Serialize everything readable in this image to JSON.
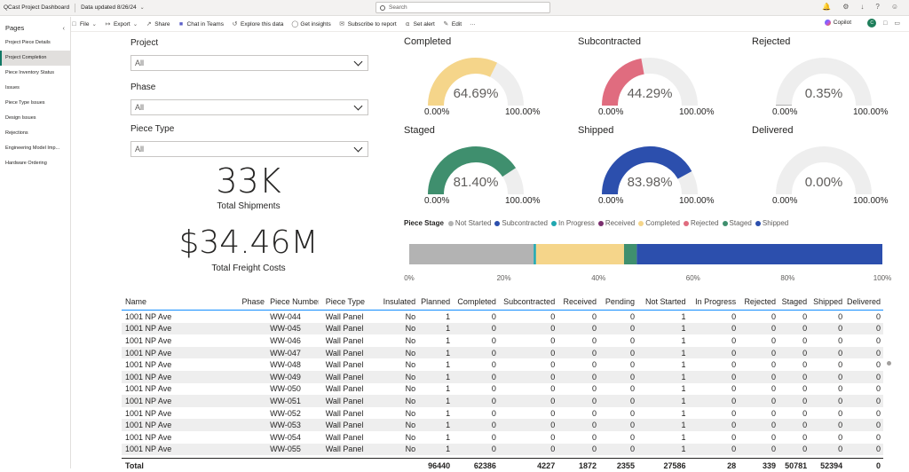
{
  "topbar": {
    "app_title": "QCast Project Dashboard",
    "updated": "Data updated 8/26/24",
    "search_placeholder": "Search"
  },
  "toolbar": {
    "items": [
      "File",
      "Export",
      "Share",
      "Chat in Teams",
      "Explore this data",
      "Get insights",
      "Subscribe to report",
      "Set alert",
      "Edit",
      "···"
    ],
    "copilot": "Copilot",
    "avatar_initials": "C"
  },
  "sidebar": {
    "title": "Pages",
    "items": [
      "Project Piece Details",
      "Project Completion",
      "Piece Inventory Status",
      "Issues",
      "Piece Type Issues",
      "Design Issues",
      "Rejections",
      "Engineering Model Imp...",
      "Hardware Ordering"
    ],
    "active_index": 1
  },
  "slicers": {
    "project": {
      "label": "Project",
      "value": "All"
    },
    "phase": {
      "label": "Phase",
      "value": "All"
    },
    "piece_type": {
      "label": "Piece Type",
      "value": "All"
    }
  },
  "kpis": {
    "shipments_value": "33K",
    "shipments_label": "Total Shipments",
    "freight_value": "$34.46M",
    "freight_label": "Total Freight Costs"
  },
  "gauges": [
    {
      "title": "Completed",
      "value": 64.69,
      "label": "64.69%",
      "min": "0.00%",
      "max": "100.00%",
      "color": "#f5d58a"
    },
    {
      "title": "Subcontracted",
      "value": 44.29,
      "label": "44.29%",
      "min": "0.00%",
      "max": "100.00%",
      "color": "#e06c7f"
    },
    {
      "title": "Rejected",
      "value": 0.35,
      "label": "0.35%",
      "min": "0.00%",
      "max": "100.00%",
      "color": "#7f7f7f"
    },
    {
      "title": "Staged",
      "value": 81.4,
      "label": "81.40%",
      "min": "0.00%",
      "max": "100.00%",
      "color": "#3f8f6e"
    },
    {
      "title": "Shipped",
      "value": 83.98,
      "label": "83.98%",
      "min": "0.00%",
      "max": "100.00%",
      "color": "#2c4fad"
    },
    {
      "title": "Delivered",
      "value": 0.0,
      "label": "0.00%",
      "min": "0.00%",
      "max": "100.00%",
      "color": "#7f7f7f"
    }
  ],
  "chart_data": {
    "type": "bar",
    "orientation": "horizontal-100%-stacked",
    "title": "Piece Stage",
    "legend_title": "Piece Stage",
    "series": [
      {
        "name": "Not Started",
        "value": 26.3,
        "color": "#b3b3b3"
      },
      {
        "name": "Subcontracted",
        "value": 0.0,
        "color": "#2c4fad"
      },
      {
        "name": "In Progress",
        "value": 0.5,
        "color": "#1fa7b0"
      },
      {
        "name": "Received",
        "value": 0.0,
        "color": "#7a2e6e"
      },
      {
        "name": "Completed",
        "value": 18.6,
        "color": "#f5d58a"
      },
      {
        "name": "Rejected",
        "value": 0.0,
        "color": "#e06c7f"
      },
      {
        "name": "Staged",
        "value": 2.7,
        "color": "#3f8f6e"
      },
      {
        "name": "Shipped",
        "value": 51.9,
        "color": "#2c4fad"
      }
    ],
    "xticks": [
      "0%",
      "20%",
      "40%",
      "60%",
      "80%",
      "100%"
    ],
    "xlim": [
      0,
      100
    ]
  },
  "table": {
    "columns": [
      "Name",
      "Phase",
      "Piece Number",
      "Piece Type",
      "Insulated",
      "Planned",
      "Completed",
      "Subcontracted",
      "Received",
      "Pending",
      "Not Started",
      "In Progress",
      "Rejected",
      "Staged",
      "Shipped",
      "Delivered"
    ],
    "rows": [
      [
        "1001 NP Ave",
        "",
        "WW-044",
        "Wall Panel",
        "No",
        "1",
        "0",
        "0",
        "0",
        "0",
        "1",
        "0",
        "0",
        "0",
        "0",
        "0"
      ],
      [
        "1001 NP Ave",
        "",
        "WW-045",
        "Wall Panel",
        "No",
        "1",
        "0",
        "0",
        "0",
        "0",
        "1",
        "0",
        "0",
        "0",
        "0",
        "0"
      ],
      [
        "1001 NP Ave",
        "",
        "WW-046",
        "Wall Panel",
        "No",
        "1",
        "0",
        "0",
        "0",
        "0",
        "1",
        "0",
        "0",
        "0",
        "0",
        "0"
      ],
      [
        "1001 NP Ave",
        "",
        "WW-047",
        "Wall Panel",
        "No",
        "1",
        "0",
        "0",
        "0",
        "0",
        "1",
        "0",
        "0",
        "0",
        "0",
        "0"
      ],
      [
        "1001 NP Ave",
        "",
        "WW-048",
        "Wall Panel",
        "No",
        "1",
        "0",
        "0",
        "0",
        "0",
        "1",
        "0",
        "0",
        "0",
        "0",
        "0"
      ],
      [
        "1001 NP Ave",
        "",
        "WW-049",
        "Wall Panel",
        "No",
        "1",
        "0",
        "0",
        "0",
        "0",
        "1",
        "0",
        "0",
        "0",
        "0",
        "0"
      ],
      [
        "1001 NP Ave",
        "",
        "WW-050",
        "Wall Panel",
        "No",
        "1",
        "0",
        "0",
        "0",
        "0",
        "1",
        "0",
        "0",
        "0",
        "0",
        "0"
      ],
      [
        "1001 NP Ave",
        "",
        "WW-051",
        "Wall Panel",
        "No",
        "1",
        "0",
        "0",
        "0",
        "0",
        "1",
        "0",
        "0",
        "0",
        "0",
        "0"
      ],
      [
        "1001 NP Ave",
        "",
        "WW-052",
        "Wall Panel",
        "No",
        "1",
        "0",
        "0",
        "0",
        "0",
        "1",
        "0",
        "0",
        "0",
        "0",
        "0"
      ],
      [
        "1001 NP Ave",
        "",
        "WW-053",
        "Wall Panel",
        "No",
        "1",
        "0",
        "0",
        "0",
        "0",
        "1",
        "0",
        "0",
        "0",
        "0",
        "0"
      ],
      [
        "1001 NP Ave",
        "",
        "WW-054",
        "Wall Panel",
        "No",
        "1",
        "0",
        "0",
        "0",
        "0",
        "1",
        "0",
        "0",
        "0",
        "0",
        "0"
      ],
      [
        "1001 NP Ave",
        "",
        "WW-055",
        "Wall Panel",
        "No",
        "1",
        "0",
        "0",
        "0",
        "0",
        "1",
        "0",
        "0",
        "0",
        "0",
        "0"
      ]
    ],
    "total": [
      "Total",
      "",
      "",
      "",
      "",
      "96440",
      "62386",
      "4227",
      "1872",
      "2355",
      "27586",
      "28",
      "339",
      "50781",
      "52394",
      "0"
    ]
  }
}
